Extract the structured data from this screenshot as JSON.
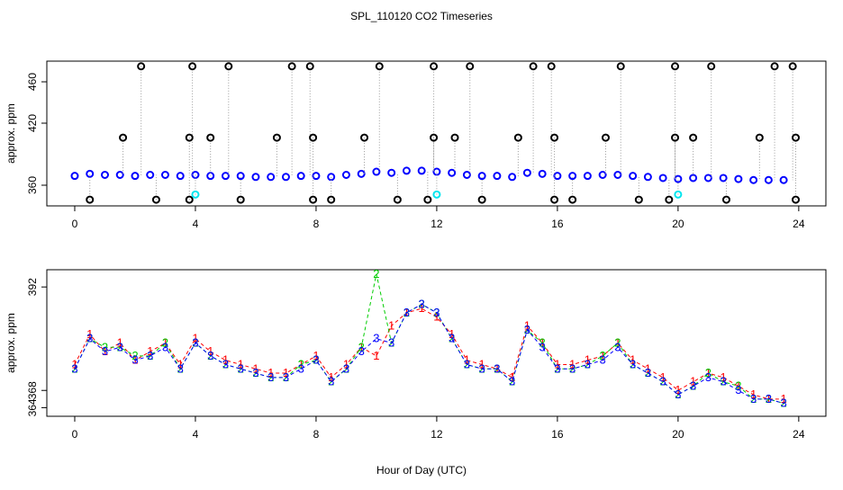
{
  "chart_data": [
    {
      "type": "scatter",
      "title": "SPL_110120  CO2 Timeseries",
      "y_label": "approx. ppm",
      "xlim": [
        -0.925,
        24.9
      ],
      "xticks": [
        0,
        4,
        8,
        12,
        16,
        20,
        24
      ],
      "ylim": [
        340,
        480
      ],
      "yticks": [
        360,
        420,
        460
      ],
      "series": [
        {
          "color": "#0000ff",
          "x": [
            0,
            0.5,
            1,
            1.5,
            2,
            2.5,
            3,
            3.5,
            4,
            4.5,
            5,
            5.5,
            6,
            6.5,
            7,
            7.5,
            8,
            8.5,
            9,
            9.5,
            10,
            10.5,
            11,
            11.5,
            12,
            12.5,
            13,
            13.5,
            14,
            14.5,
            15,
            15.5,
            16,
            16.5,
            17,
            17.5,
            18,
            18.5,
            19,
            19.5,
            20,
            20.5,
            21,
            21.5,
            22,
            22.5,
            23,
            23.5
          ],
          "values": [
            369,
            371,
            370,
            370,
            369,
            370,
            370,
            369,
            370,
            369,
            369,
            369,
            368,
            368,
            368,
            369,
            369,
            368,
            370,
            371,
            373,
            372,
            374,
            374,
            373,
            372,
            370,
            369,
            369,
            368,
            372,
            371,
            369,
            369,
            369,
            370,
            370,
            369,
            368,
            367,
            366,
            367,
            367,
            367,
            366,
            365,
            365,
            365
          ]
        },
        {
          "color": "#000000",
          "x": [
            2.2,
            3.9,
            5.1,
            7.2,
            7.8,
            10.1,
            11.9,
            13.1,
            15.2,
            15.8,
            18.1,
            19.9,
            21.1,
            23.2,
            23.8,
            1.6,
            3.8,
            4.5,
            6.7,
            7.9,
            9.6,
            11.9,
            12.6,
            14.7,
            15.9,
            17.6,
            19.9,
            20.5,
            22.7,
            23.9,
            0.5,
            2.7,
            3.8,
            5.5,
            7.9,
            8.5,
            10.7,
            11.7,
            13.5,
            15.9,
            16.5,
            18.7,
            19.7,
            21.6,
            23.9
          ],
          "values": [
            475,
            475,
            475,
            475,
            475,
            475,
            475,
            475,
            475,
            475,
            475,
            475,
            475,
            475,
            475,
            406,
            406,
            406,
            406,
            406,
            406,
            406,
            406,
            406,
            406,
            406,
            406,
            406,
            406,
            406,
            346,
            346,
            346,
            346,
            346,
            346,
            346,
            346,
            346,
            346,
            346,
            346,
            346,
            346,
            346
          ]
        },
        {
          "color": "#00e5ee",
          "x": [
            4,
            12,
            20
          ],
          "values": [
            351,
            351,
            351
          ]
        }
      ]
    },
    {
      "type": "line",
      "y_label": "approx. ppm",
      "x_label": "Hour of Day (UTC)",
      "xlim": [
        -0.925,
        24.9
      ],
      "xticks": [
        0,
        4,
        8,
        12,
        16,
        20,
        24
      ],
      "ylim": [
        362,
        396
      ],
      "yticks": [
        364,
        368,
        392
      ],
      "x": [
        0,
        0.5,
        1,
        1.5,
        2,
        2.5,
        3,
        3.5,
        4,
        4.5,
        5,
        5.5,
        6,
        6.5,
        7,
        7.5,
        8,
        8.5,
        9,
        9.5,
        10,
        10.5,
        11,
        11.5,
        12,
        12.5,
        13,
        13.5,
        14,
        14.5,
        15,
        15.5,
        16,
        16.5,
        17,
        17.5,
        18,
        18.5,
        19,
        19.5,
        20,
        20.5,
        21,
        21.5,
        22,
        22.5,
        23,
        23.5
      ],
      "series": [
        {
          "marker": "1",
          "color": "#ff0000",
          "values": [
            374,
            381,
            377,
            379,
            375,
            377,
            379,
            374,
            380,
            377,
            375,
            374,
            373,
            372,
            372,
            374,
            376,
            371,
            374,
            378,
            376,
            383,
            386,
            387,
            385,
            381,
            375,
            374,
            373,
            371,
            383,
            379,
            374,
            374,
            375,
            376,
            379,
            375,
            373,
            371,
            368,
            370,
            372,
            371,
            369,
            367,
            366,
            366
          ]
        },
        {
          "marker": "2",
          "color": "#00cd00",
          "values": [
            373,
            380,
            378,
            378,
            376,
            376,
            379,
            373,
            379,
            376,
            374,
            373,
            372,
            371,
            371,
            374,
            375,
            370,
            373,
            378,
            395,
            379,
            386,
            388,
            386,
            380,
            374,
            373,
            373,
            370,
            382,
            379,
            373,
            373,
            374,
            376,
            379,
            374,
            372,
            370,
            367,
            369,
            372,
            370,
            369,
            366,
            366,
            365
          ]
        },
        {
          "marker": "3",
          "color": "#0000ff",
          "values": [
            373,
            380,
            377,
            378,
            375,
            376,
            378,
            373,
            379,
            376,
            374,
            373,
            372,
            371,
            371,
            373,
            375,
            370,
            373,
            377,
            380,
            379,
            386,
            388,
            386,
            380,
            374,
            373,
            373,
            370,
            382,
            378,
            373,
            373,
            374,
            375,
            378,
            374,
            372,
            370,
            367,
            369,
            371,
            370,
            368,
            366,
            366,
            365
          ]
        }
      ]
    }
  ]
}
